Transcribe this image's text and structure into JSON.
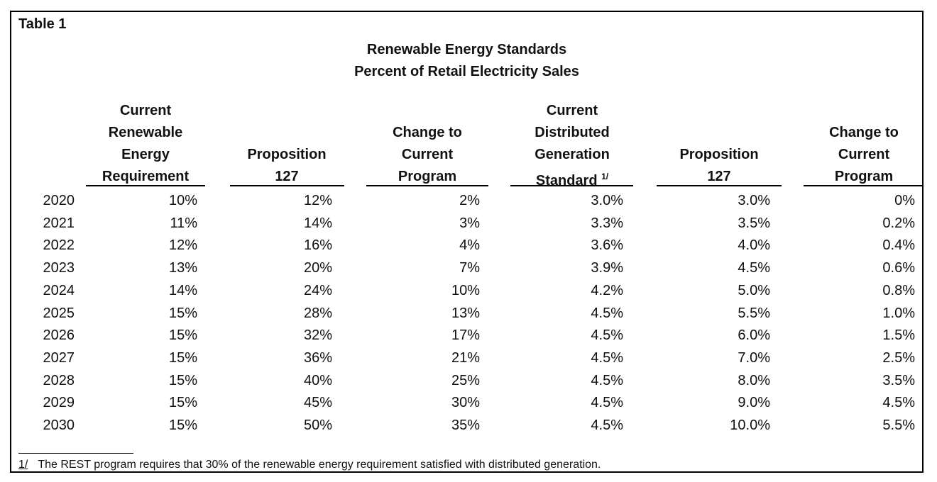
{
  "table_label": "Table 1",
  "title_line1": "Renewable Energy Standards",
  "title_line2": "Percent of Retail Electricity Sales",
  "headers": [
    {
      "lines": [
        "Current",
        "Renewable",
        "Energy",
        "Requirement"
      ]
    },
    {
      "lines": [
        "Proposition",
        "127"
      ]
    },
    {
      "lines": [
        "Change to",
        "Current",
        "Program"
      ]
    },
    {
      "lines": [
        "Current",
        "Distributed",
        "Generation",
        "Standard"
      ],
      "sup": "1/"
    },
    {
      "lines": [
        "Proposition",
        "127"
      ]
    },
    {
      "lines": [
        "Change to",
        "Current",
        "Program"
      ]
    }
  ],
  "rows": [
    {
      "year": "2020",
      "values": [
        "10%",
        "12%",
        "2%",
        "3.0%",
        "3.0%",
        "0%"
      ]
    },
    {
      "year": "2021",
      "values": [
        "11%",
        "14%",
        "3%",
        "3.3%",
        "3.5%",
        "0.2%"
      ]
    },
    {
      "year": "2022",
      "values": [
        "12%",
        "16%",
        "4%",
        "3.6%",
        "4.0%",
        "0.4%"
      ]
    },
    {
      "year": "2023",
      "values": [
        "13%",
        "20%",
        "7%",
        "3.9%",
        "4.5%",
        "0.6%"
      ]
    },
    {
      "year": "2024",
      "values": [
        "14%",
        "24%",
        "10%",
        "4.2%",
        "5.0%",
        "0.8%"
      ]
    },
    {
      "year": "2025",
      "values": [
        "15%",
        "28%",
        "13%",
        "4.5%",
        "5.5%",
        "1.0%"
      ]
    },
    {
      "year": "2026",
      "values": [
        "15%",
        "32%",
        "17%",
        "4.5%",
        "6.0%",
        "1.5%"
      ]
    },
    {
      "year": "2027",
      "values": [
        "15%",
        "36%",
        "21%",
        "4.5%",
        "7.0%",
        "2.5%"
      ]
    },
    {
      "year": "2028",
      "values": [
        "15%",
        "40%",
        "25%",
        "4.5%",
        "8.0%",
        "3.5%"
      ]
    },
    {
      "year": "2029",
      "values": [
        "15%",
        "45%",
        "30%",
        "4.5%",
        "9.0%",
        "4.5%"
      ]
    },
    {
      "year": "2030",
      "values": [
        "15%",
        "50%",
        "35%",
        "4.5%",
        "10.0%",
        "5.5%"
      ]
    }
  ],
  "footnote": {
    "mark": "1/",
    "text": "The REST program requires that 30% of the renewable energy requirement satisfied with distributed generation."
  }
}
